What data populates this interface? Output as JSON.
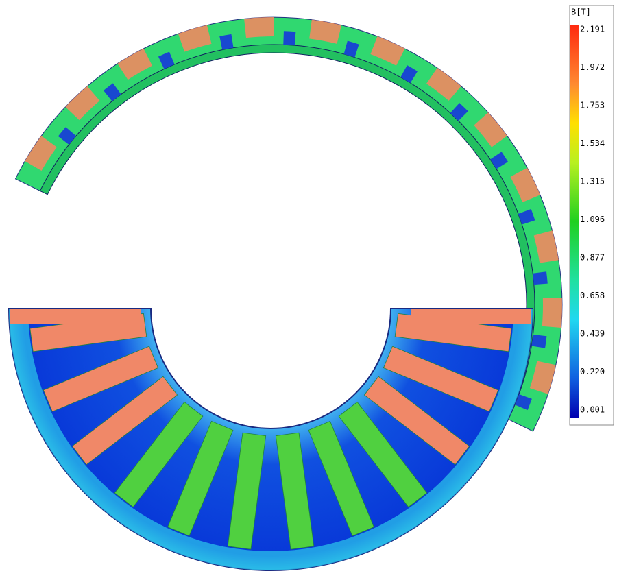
{
  "legend": {
    "title": "B[T]",
    "labels": [
      "2.191",
      "1.972",
      "1.753",
      "1.534",
      "1.315",
      "1.096",
      "0.877",
      "0.658",
      "0.439",
      "0.220",
      "0.001"
    ]
  }
}
